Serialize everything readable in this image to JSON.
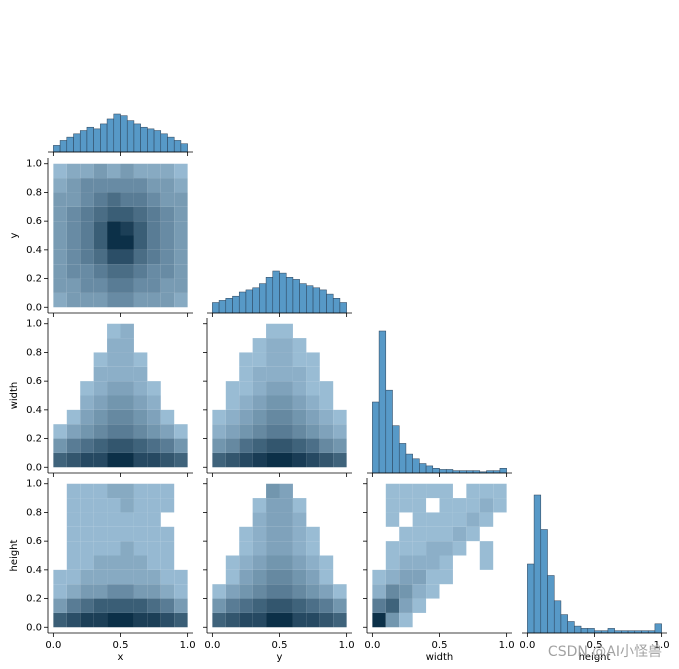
{
  "chart_data": {
    "type": "pairplot",
    "variables": [
      "x",
      "y",
      "width",
      "height"
    ],
    "color": "#1f77b4",
    "xlim": [
      -0.04,
      1.04
    ],
    "ylim": [
      -0.04,
      1.04
    ],
    "xticks": [
      {
        "value": 0.0,
        "label": "0.0"
      },
      {
        "value": 0.5,
        "label": "0.5"
      },
      {
        "value": 1.0,
        "label": "1.0"
      }
    ],
    "yticks": [
      {
        "value": 0.0,
        "label": "0.0"
      },
      {
        "value": 0.2,
        "label": "0.2"
      },
      {
        "value": 0.4,
        "label": "0.4"
      },
      {
        "value": 0.6,
        "label": "0.6"
      },
      {
        "value": 0.8,
        "label": "0.8"
      },
      {
        "value": 1.0,
        "label": "1.0"
      }
    ],
    "histograms": [
      {
        "bins": [
          0,
          0.05,
          0.1,
          0.15,
          0.2,
          0.25,
          0.3,
          0.35,
          0.4,
          0.45,
          0.5,
          0.55,
          0.6,
          0.65,
          0.7,
          0.75,
          0.8,
          0.85,
          0.9,
          0.95,
          1.0
        ],
        "counts": [
          8,
          14,
          18,
          22,
          26,
          30,
          28,
          34,
          40,
          46,
          44,
          38,
          34,
          30,
          28,
          26,
          22,
          18,
          14,
          10
        ]
      },
      {
        "bins": [
          0,
          0.05,
          0.1,
          0.15,
          0.2,
          0.25,
          0.3,
          0.35,
          0.4,
          0.45,
          0.5,
          0.55,
          0.6,
          0.65,
          0.7,
          0.75,
          0.8,
          0.85,
          0.9,
          0.95,
          1.0
        ],
        "counts": [
          10,
          12,
          14,
          16,
          20,
          22,
          24,
          28,
          34,
          40,
          38,
          34,
          32,
          28,
          26,
          24,
          22,
          18,
          14,
          10
        ]
      },
      {
        "bins": [
          0,
          0.05,
          0.1,
          0.15,
          0.2,
          0.25,
          0.3,
          0.35,
          0.4,
          0.45,
          0.5,
          0.55,
          0.6,
          0.65,
          0.7,
          0.75,
          0.8,
          0.85,
          0.9,
          0.95,
          1.0
        ],
        "counts": [
          60,
          120,
          70,
          40,
          25,
          16,
          12,
          8,
          6,
          4,
          3,
          3,
          2,
          2,
          2,
          2,
          1,
          2,
          2,
          4
        ]
      },
      {
        "bins": [
          0,
          0.05,
          0.1,
          0.15,
          0.2,
          0.25,
          0.3,
          0.35,
          0.4,
          0.45,
          0.5,
          0.55,
          0.6,
          0.65,
          0.7,
          0.75,
          0.8,
          0.85,
          0.9,
          0.95,
          1.0
        ],
        "counts": [
          30,
          60,
          45,
          25,
          14,
          8,
          5,
          3,
          2,
          2,
          1,
          1,
          2,
          1,
          1,
          1,
          1,
          1,
          1,
          4
        ]
      }
    ],
    "heatmap_bins": [
      0,
      0.1,
      0.2,
      0.3,
      0.4,
      0.5,
      0.6,
      0.7,
      0.8,
      0.9,
      1.0
    ],
    "heatmaps": [
      {
        "values": [
          [
            2,
            3,
            3,
            3,
            4,
            4,
            3,
            3,
            3,
            2
          ],
          [
            3,
            3,
            4,
            4,
            5,
            5,
            4,
            4,
            3,
            3
          ],
          [
            3,
            4,
            4,
            5,
            6,
            6,
            5,
            4,
            4,
            3
          ],
          [
            3,
            4,
            5,
            6,
            8,
            8,
            6,
            5,
            4,
            3
          ],
          [
            3,
            4,
            5,
            7,
            10,
            10,
            7,
            5,
            4,
            3
          ],
          [
            3,
            4,
            5,
            7,
            10,
            9,
            7,
            5,
            4,
            3
          ],
          [
            3,
            4,
            5,
            6,
            7,
            7,
            6,
            5,
            4,
            3
          ],
          [
            3,
            3,
            4,
            5,
            6,
            5,
            5,
            4,
            3,
            3
          ],
          [
            2,
            3,
            4,
            4,
            4,
            4,
            4,
            3,
            3,
            2
          ],
          [
            1,
            2,
            2,
            3,
            2,
            3,
            2,
            2,
            2,
            1
          ]
        ]
      },
      {
        "values": [
          [
            8,
            9,
            10,
            10,
            12,
            12,
            10,
            10,
            9,
            8
          ],
          [
            4,
            6,
            7,
            8,
            9,
            9,
            8,
            7,
            6,
            4
          ],
          [
            1,
            3,
            4,
            5,
            6,
            6,
            5,
            4,
            3,
            1
          ],
          [
            0,
            1,
            3,
            4,
            5,
            5,
            4,
            3,
            1,
            0
          ],
          [
            0,
            0,
            2,
            3,
            4,
            4,
            3,
            2,
            0,
            0
          ],
          [
            0,
            0,
            1,
            2,
            3,
            3,
            2,
            1,
            0,
            0
          ],
          [
            0,
            0,
            0,
            2,
            2,
            2,
            2,
            0,
            0,
            0
          ],
          [
            0,
            0,
            0,
            1,
            2,
            2,
            1,
            0,
            0,
            0
          ],
          [
            0,
            0,
            0,
            0,
            2,
            2,
            0,
            0,
            0,
            0
          ],
          [
            0,
            0,
            0,
            0,
            1,
            2,
            0,
            0,
            0,
            0
          ]
        ]
      },
      {
        "values": [
          [
            8,
            9,
            10,
            11,
            12,
            12,
            11,
            10,
            9,
            8
          ],
          [
            4,
            5,
            7,
            8,
            9,
            9,
            8,
            7,
            5,
            4
          ],
          [
            2,
            3,
            4,
            5,
            6,
            6,
            5,
            4,
            3,
            2
          ],
          [
            1,
            2,
            3,
            4,
            5,
            5,
            4,
            3,
            2,
            1
          ],
          [
            0,
            1,
            2,
            3,
            4,
            4,
            3,
            2,
            1,
            0
          ],
          [
            0,
            1,
            1,
            2,
            3,
            3,
            2,
            1,
            1,
            0
          ],
          [
            0,
            0,
            1,
            2,
            2,
            2,
            2,
            1,
            0,
            0
          ],
          [
            0,
            0,
            1,
            1,
            2,
            2,
            1,
            1,
            0,
            0
          ],
          [
            0,
            0,
            0,
            1,
            2,
            2,
            1,
            0,
            0,
            0
          ],
          [
            0,
            0,
            0,
            0,
            1,
            1,
            0,
            0,
            0,
            0
          ]
        ]
      },
      {
        "values": [
          [
            7,
            8,
            9,
            9,
            10,
            10,
            9,
            9,
            8,
            7
          ],
          [
            3,
            5,
            6,
            7,
            7,
            7,
            7,
            6,
            5,
            3
          ],
          [
            1,
            2,
            3,
            3,
            4,
            4,
            3,
            3,
            2,
            1
          ],
          [
            1,
            1,
            2,
            2,
            2,
            2,
            2,
            2,
            1,
            1
          ],
          [
            0,
            1,
            1,
            2,
            2,
            2,
            2,
            1,
            1,
            0
          ],
          [
            0,
            1,
            1,
            1,
            1,
            2,
            1,
            1,
            1,
            0
          ],
          [
            0,
            1,
            1,
            1,
            1,
            1,
            1,
            1,
            1,
            0
          ],
          [
            0,
            1,
            1,
            1,
            1,
            1,
            1,
            1,
            0,
            0
          ],
          [
            0,
            1,
            1,
            1,
            1,
            2,
            1,
            1,
            1,
            0
          ],
          [
            0,
            1,
            1,
            1,
            2,
            2,
            1,
            1,
            1,
            0
          ]
        ]
      },
      {
        "values": [
          [
            8,
            9,
            10,
            10,
            12,
            12,
            10,
            10,
            9,
            8
          ],
          [
            4,
            6,
            7,
            8,
            9,
            9,
            8,
            7,
            6,
            4
          ],
          [
            1,
            3,
            4,
            5,
            6,
            6,
            5,
            4,
            3,
            1
          ],
          [
            0,
            1,
            3,
            4,
            5,
            5,
            4,
            3,
            1,
            0
          ],
          [
            0,
            1,
            2,
            3,
            4,
            4,
            3,
            2,
            1,
            0
          ],
          [
            0,
            0,
            1,
            2,
            3,
            3,
            2,
            1,
            0,
            0
          ],
          [
            0,
            0,
            1,
            2,
            3,
            3,
            2,
            1,
            0,
            0
          ],
          [
            0,
            0,
            0,
            2,
            3,
            3,
            2,
            0,
            0,
            0
          ],
          [
            0,
            0,
            0,
            1,
            3,
            3,
            1,
            0,
            0,
            0
          ],
          [
            0,
            0,
            0,
            0,
            4,
            3,
            0,
            0,
            0,
            0
          ]
        ]
      },
      {
        "values": [
          [
            12,
            4,
            1,
            0,
            0,
            0,
            0,
            0,
            0,
            0
          ],
          [
            6,
            8,
            3,
            1,
            0,
            0,
            0,
            0,
            0,
            0
          ],
          [
            2,
            5,
            4,
            2,
            1,
            0,
            0,
            0,
            0,
            0
          ],
          [
            1,
            2,
            3,
            3,
            1,
            1,
            0,
            0,
            0,
            0
          ],
          [
            0,
            1,
            2,
            2,
            2,
            1,
            0,
            0,
            1,
            0
          ],
          [
            0,
            1,
            1,
            1,
            2,
            2,
            1,
            0,
            1,
            0
          ],
          [
            0,
            0,
            1,
            1,
            1,
            1,
            2,
            1,
            0,
            0
          ],
          [
            0,
            1,
            0,
            1,
            1,
            1,
            1,
            2,
            1,
            0
          ],
          [
            0,
            1,
            1,
            1,
            0,
            1,
            1,
            1,
            2,
            1
          ],
          [
            0,
            1,
            1,
            1,
            1,
            1,
            0,
            1,
            1,
            1
          ]
        ]
      }
    ],
    "watermark": "CSDN @AI小怪兽"
  }
}
